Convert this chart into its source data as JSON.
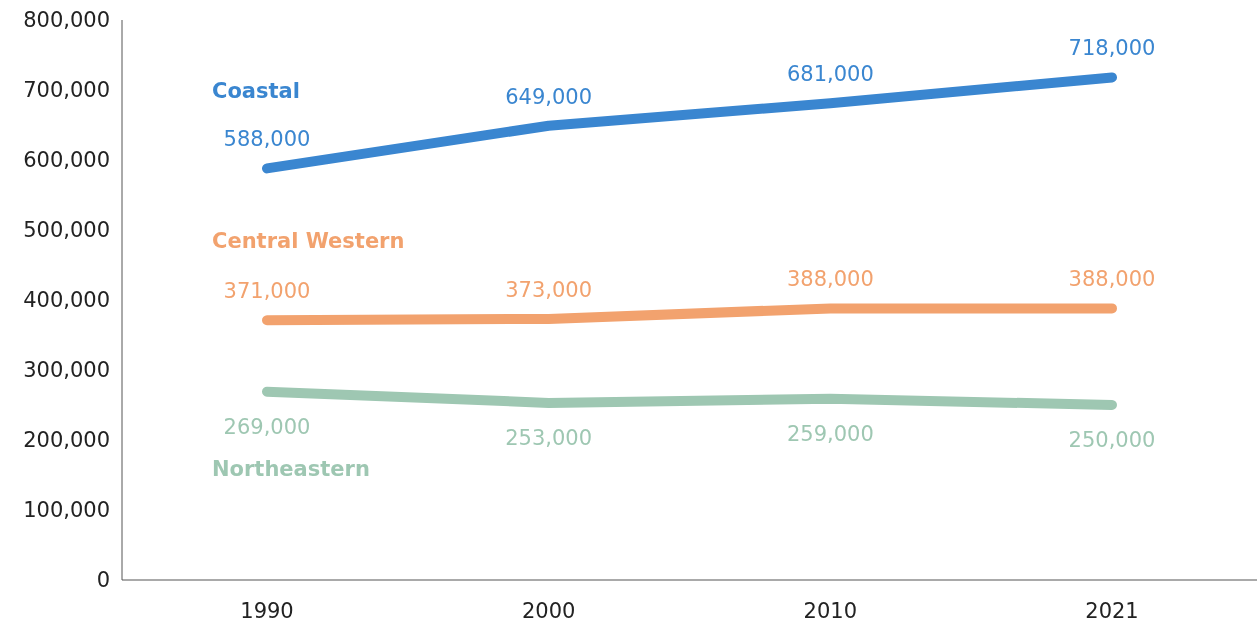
{
  "chart_data": {
    "type": "line",
    "categories": [
      "1990",
      "2000",
      "2010",
      "2021"
    ],
    "series": [
      {
        "name": "Coastal",
        "color": "#3a86d0",
        "values": [
          588000,
          649000,
          681000,
          718000
        ],
        "value_labels": [
          "588,000",
          "649,000",
          "681,000",
          "718,000"
        ]
      },
      {
        "name": "Central Western",
        "color": "#f2a26e",
        "values": [
          371000,
          373000,
          388000,
          388000
        ],
        "value_labels": [
          "371,000",
          "373,000",
          "388,000",
          "388,000"
        ]
      },
      {
        "name": "Northeastern",
        "color": "#9ec7b2",
        "values": [
          269000,
          253000,
          259000,
          250000
        ],
        "value_labels": [
          "269,000",
          "253,000",
          "259,000",
          "250,000"
        ]
      }
    ],
    "ylim": [
      0,
      800000
    ],
    "yticks": [
      {
        "value": 0,
        "label": "0"
      },
      {
        "value": 100000,
        "label": "100,000"
      },
      {
        "value": 200000,
        "label": "200,000"
      },
      {
        "value": 300000,
        "label": "300,000"
      },
      {
        "value": 400000,
        "label": "400,000"
      },
      {
        "value": 500000,
        "label": "500,000"
      },
      {
        "value": 600000,
        "label": "600,000"
      },
      {
        "value": 700000,
        "label": "700,000"
      },
      {
        "value": 800000,
        "label": "800,000"
      }
    ],
    "grid": false,
    "marker": "none",
    "line_style": "solid"
  }
}
